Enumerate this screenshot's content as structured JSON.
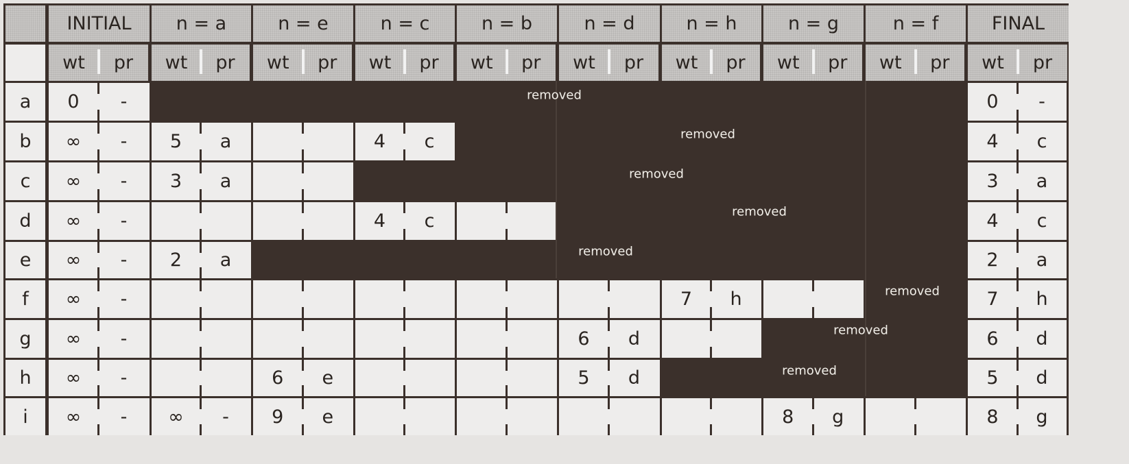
{
  "header": {
    "groups": [
      "INITIAL",
      "n = a",
      "n = e",
      "n = c",
      "n = b",
      "n = d",
      "n = h",
      "n = g",
      "n = f",
      "FINAL"
    ],
    "wt_label": "wt",
    "pr_label": "pr"
  },
  "removed_label": "removed",
  "rows": [
    {
      "label": "a",
      "cells": [
        [
          "0",
          "-"
        ],
        null,
        null,
        null,
        null,
        null,
        null,
        null,
        null,
        [
          "0",
          "-"
        ]
      ]
    },
    {
      "label": "b",
      "cells": [
        [
          "∞",
          "-"
        ],
        [
          "5",
          "a"
        ],
        [
          "",
          ""
        ],
        [
          "4",
          "c"
        ],
        null,
        null,
        null,
        null,
        null,
        [
          "4",
          "c"
        ]
      ]
    },
    {
      "label": "c",
      "cells": [
        [
          "∞",
          "-"
        ],
        [
          "3",
          "a"
        ],
        [
          "",
          ""
        ],
        null,
        null,
        null,
        null,
        null,
        null,
        [
          "3",
          "a"
        ]
      ]
    },
    {
      "label": "d",
      "cells": [
        [
          "∞",
          "-"
        ],
        [
          "",
          ""
        ],
        [
          "",
          ""
        ],
        [
          "4",
          "c"
        ],
        [
          "",
          ""
        ],
        null,
        null,
        null,
        null,
        [
          "4",
          "c"
        ]
      ]
    },
    {
      "label": "e",
      "cells": [
        [
          "∞",
          "-"
        ],
        [
          "2",
          "a"
        ],
        null,
        null,
        null,
        null,
        null,
        null,
        null,
        [
          "2",
          "a"
        ]
      ]
    },
    {
      "label": "f",
      "cells": [
        [
          "∞",
          "-"
        ],
        [
          "",
          ""
        ],
        [
          "",
          ""
        ],
        [
          "",
          ""
        ],
        [
          "",
          ""
        ],
        [
          "",
          ""
        ],
        [
          "7",
          "h"
        ],
        [
          "",
          ""
        ],
        null,
        [
          "7",
          "h"
        ]
      ]
    },
    {
      "label": "g",
      "cells": [
        [
          "∞",
          "-"
        ],
        [
          "",
          ""
        ],
        [
          "",
          ""
        ],
        [
          "",
          ""
        ],
        [
          "",
          ""
        ],
        [
          "6",
          "d"
        ],
        [
          "",
          ""
        ],
        null,
        null,
        [
          "6",
          "d"
        ]
      ]
    },
    {
      "label": "h",
      "cells": [
        [
          "∞",
          "-"
        ],
        [
          "",
          ""
        ],
        [
          "6",
          "e"
        ],
        [
          "",
          ""
        ],
        [
          "",
          ""
        ],
        [
          "5",
          "d"
        ],
        null,
        null,
        null,
        [
          "5",
          "d"
        ]
      ]
    },
    {
      "label": "i",
      "cells": [
        [
          "∞",
          "-"
        ],
        [
          "∞",
          "-"
        ],
        [
          "9",
          "e"
        ],
        [
          "",
          ""
        ],
        [
          "",
          ""
        ],
        [
          "",
          ""
        ],
        [
          "",
          ""
        ],
        [
          "8",
          "g"
        ],
        [
          "",
          ""
        ],
        [
          "8",
          "g"
        ]
      ]
    }
  ],
  "colors": {
    "grid": "#3b302b",
    "header": "#c8c6c4",
    "cell": "#eeedec",
    "removed_text": "#f2efe9"
  }
}
